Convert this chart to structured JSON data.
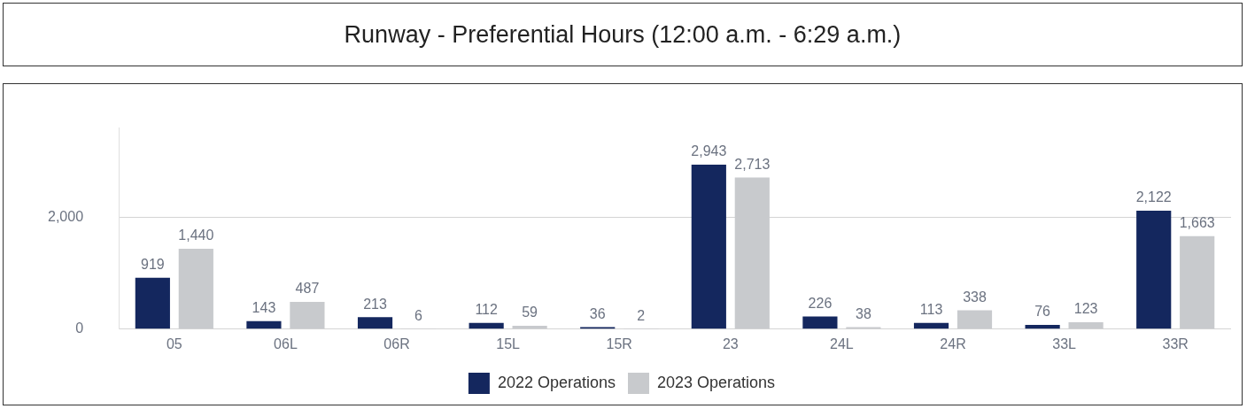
{
  "chart_data": {
    "type": "bar",
    "title": "Runway - Preferential Hours (12:00 a.m. - 6:29 a.m.)",
    "categories": [
      "05",
      "06L",
      "06R",
      "15L",
      "15R",
      "23",
      "24L",
      "24R",
      "33L",
      "33R"
    ],
    "series": [
      {
        "name": "2022 Operations",
        "color": "#14275e",
        "values": [
          919,
          143,
          213,
          112,
          36,
          2943,
          226,
          113,
          76,
          2122
        ],
        "value_labels": [
          "919",
          "143",
          "213",
          "112",
          "36",
          "2,943",
          "226",
          "113",
          "76",
          "2,122"
        ]
      },
      {
        "name": "2023 Operations",
        "color": "#c8cacd",
        "values": [
          1440,
          487,
          6,
          59,
          2,
          2713,
          38,
          338,
          123,
          1663
        ],
        "value_labels": [
          "1,440",
          "487",
          "6",
          "59",
          "2",
          "2,713",
          "38",
          "338",
          "123",
          "1,663"
        ]
      }
    ],
    "ylim": [
      0,
      3600
    ],
    "yticks": [
      0,
      {
        "value": 2000,
        "label": "2,000"
      }
    ],
    "grid": "y",
    "legend": "bottom"
  }
}
